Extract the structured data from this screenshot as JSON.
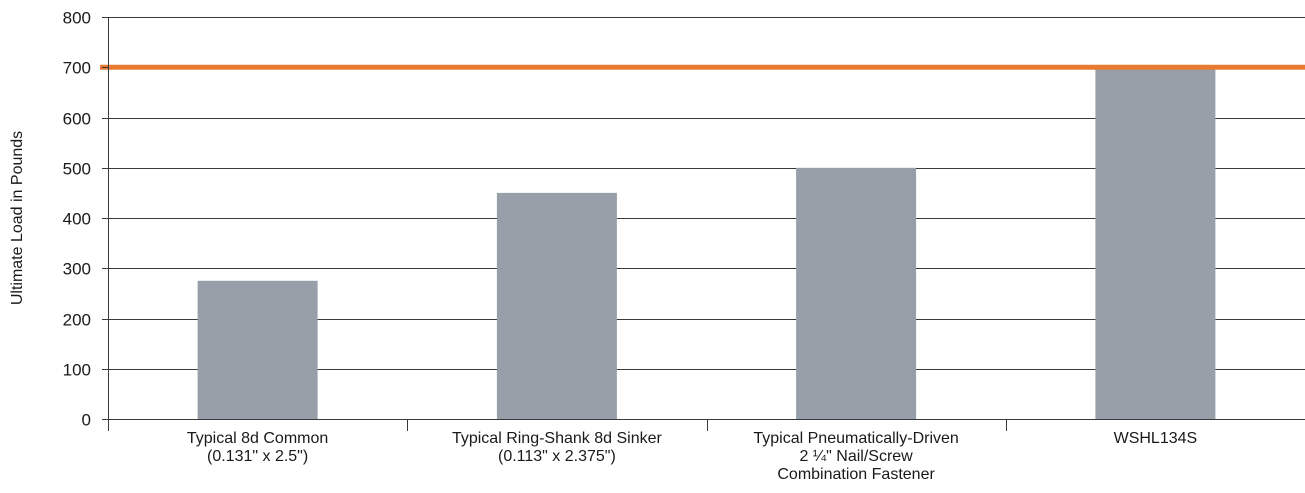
{
  "chart_data": {
    "type": "bar",
    "title": "",
    "xlabel": "",
    "ylabel": "Ultimate Load in Pounds",
    "ylim": [
      0,
      800
    ],
    "yticks": [
      0,
      100,
      200,
      300,
      400,
      500,
      600,
      700,
      800
    ],
    "grid": true,
    "categories": [
      [
        "Typical 8d Common",
        "(0.131\" x 2.5\")"
      ],
      [
        "Typical Ring-Shank 8d Sinker",
        "(0.113\" x 2.375\")"
      ],
      [
        "Typical Pneumatically-Driven",
        "2 ¼\" Nail/Screw",
        "Combination Fastener"
      ],
      [
        "WSHL134S"
      ]
    ],
    "values": [
      275,
      450,
      500,
      700
    ],
    "reference_line": {
      "value": 700
    },
    "colors": {
      "bar": "#97a0a8",
      "reference_line": "#e87a32",
      "grid": "#3a3a3a",
      "axis": "#3a3a3a"
    }
  }
}
